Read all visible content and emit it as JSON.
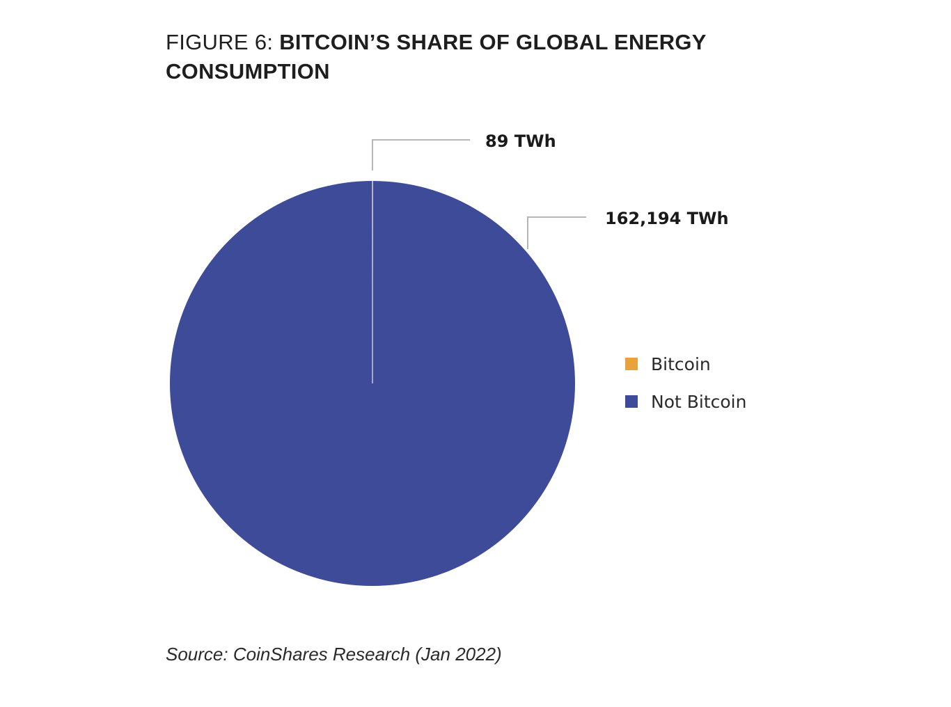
{
  "title_prefix": "FIGURE 6:",
  "title_main": "BITCOIN’S SHARE OF GLOBAL ENERGY CONSUMPTION",
  "source": "Source: CoinShares Research (Jan 2022)",
  "chart_data": {
    "type": "pie",
    "title": "FIGURE 6: BITCOIN’S SHARE OF GLOBAL ENERGY CONSUMPTION",
    "unit": "TWh",
    "legend_position": "right",
    "slices": [
      {
        "name": "Bitcoin",
        "value": 89,
        "label": "89 TWh",
        "color": "#e8a33d"
      },
      {
        "name": "Not Bitcoin",
        "value": 162194,
        "label": "162,194 TWh",
        "color": "#3d4b98"
      }
    ]
  }
}
